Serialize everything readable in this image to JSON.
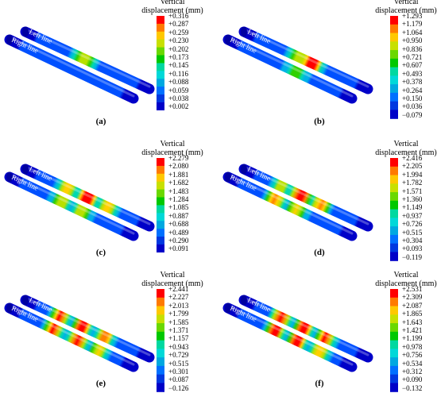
{
  "legend_title_line1": "Vertical",
  "legend_title_line2": "displacement (mm)",
  "rail_labels": {
    "left": "Left line",
    "right": "Right line"
  },
  "colorbar_colors": [
    "#ff0000",
    "#ff7a00",
    "#ffc800",
    "#c8e000",
    "#6ad800",
    "#00c800",
    "#00d8a0",
    "#00d8d8",
    "#00a8e0",
    "#0070ff",
    "#0038e0",
    "#0000c8"
  ],
  "panels": [
    {
      "label": "(a)",
      "legend_values": [
        "+0.316",
        "+0.287",
        "+0.259",
        "+0.230",
        "+0.202",
        "+0.173",
        "+0.145",
        "+0.116",
        "+0.088",
        "+0.059",
        "+0.038",
        "+0.002"
      ]
    },
    {
      "label": "(b)",
      "legend_values": [
        "+1.293",
        "+1.179",
        "+1.064",
        "+0.950",
        "+0.836",
        "+0.721",
        "+0.607",
        "+0.493",
        "+0.378",
        "+0.264",
        "+0.150",
        "+0.036",
        "−0.079"
      ]
    },
    {
      "label": "(c)",
      "legend_values": [
        "+2.279",
        "+2.080",
        "+1.881",
        "+1.682",
        "+1.483",
        "+1.284",
        "+1.085",
        "+0.887",
        "+0.688",
        "+0.489",
        "+0.290",
        "+0.091"
      ]
    },
    {
      "label": "(d)",
      "legend_values": [
        "+2.416",
        "+2.205",
        "+1.994",
        "+1.782",
        "+1.571",
        "+1.360",
        "+1.149",
        "+0.937",
        "+0.726",
        "+0.515",
        "+0.304",
        "+0.093",
        "−0.119"
      ]
    },
    {
      "label": "(e)",
      "legend_values": [
        "+2.441",
        "+2.227",
        "+2.013",
        "+1.799",
        "+1.585",
        "+1.371",
        "+1.157",
        "+0.943",
        "+0.729",
        "+0.515",
        "+0.301",
        "+0.087",
        "−0.126"
      ]
    },
    {
      "label": "(f)",
      "legend_values": [
        "+2.531",
        "+2.309",
        "+2.087",
        "+1.865",
        "+1.643",
        "+1.421",
        "+1.199",
        "+0.978",
        "+0.756",
        "+0.534",
        "+0.312",
        "+0.090",
        "−0.132"
      ]
    }
  ]
}
